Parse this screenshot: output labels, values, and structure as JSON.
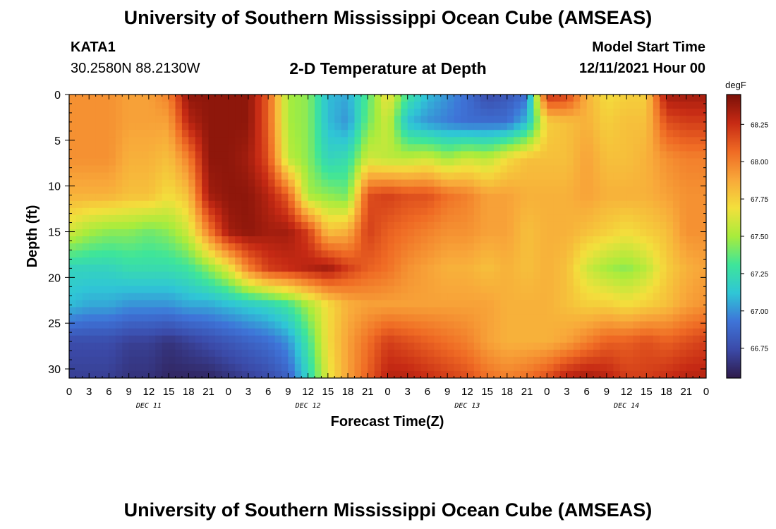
{
  "header": {
    "title": "University of Southern Mississippi Ocean Cube (AMSEAS)",
    "station": "KATA1",
    "coords": "30.2580N  88.2130W",
    "subtitle": "2-D Temperature at Depth",
    "model_start_label": "Model Start Time",
    "model_start_value": "12/11/2021 Hour 00"
  },
  "footer": {
    "title": "University of Southern Mississippi Ocean Cube (AMSEAS)"
  },
  "chart_data": {
    "type": "heatmap",
    "title": "2-D Temperature at Depth",
    "xlabel": "Forecast Time(Z)",
    "ylabel": "Depth (ft)",
    "xlim": [
      0,
      96
    ],
    "ylim": [
      31,
      0
    ],
    "x_tick_labels": [
      "0",
      "3",
      "6",
      "9",
      "12",
      "15",
      "18",
      "21",
      "0",
      "3",
      "6",
      "9",
      "12",
      "15",
      "18",
      "21",
      "0",
      "3",
      "6",
      "9",
      "12",
      "15",
      "18",
      "21",
      "0",
      "3",
      "6",
      "9",
      "12",
      "15",
      "18",
      "21",
      "0"
    ],
    "y_ticks": [
      0,
      5,
      10,
      15,
      20,
      25,
      30
    ],
    "day_labels": [
      {
        "label": "DEC 11",
        "hour": 12
      },
      {
        "label": "DEC 12",
        "hour": 36
      },
      {
        "label": "DEC 13",
        "hour": 60
      },
      {
        "label": "DEC 14",
        "hour": 84
      }
    ],
    "colorbar": {
      "units": "degF",
      "ticks": [
        66.75,
        67.0,
        67.25,
        67.5,
        67.75,
        68.0,
        68.25
      ],
      "tick_labels": [
        "66.75",
        "67.00",
        "67.25",
        "67.50",
        "67.75",
        "68.00",
        "68.25"
      ],
      "range": [
        66.55,
        68.45
      ],
      "colors": [
        "#2e1a4a",
        "#3b4aa8",
        "#3e74d8",
        "#2fc6d6",
        "#3ee59a",
        "#a8ec3c",
        "#f3e03c",
        "#f8a83a",
        "#ef6a24",
        "#c62a14",
        "#7a1008"
      ]
    },
    "depths": [
      0,
      5,
      10,
      15,
      20,
      25,
      30
    ],
    "hours": [
      0,
      3,
      6,
      9,
      12,
      15,
      18,
      21,
      24,
      27,
      30,
      33,
      36,
      39,
      42,
      45,
      48,
      51,
      54,
      57,
      60,
      63,
      66,
      69,
      72,
      75,
      78,
      81,
      84,
      87,
      90,
      93,
      96
    ],
    "values": [
      [
        67.95,
        67.95,
        67.95,
        67.9,
        67.9,
        68.0,
        68.4,
        68.4,
        68.4,
        68.4,
        68.1,
        67.5,
        67.45,
        67.1,
        67.05,
        67.35,
        67.7,
        67.3,
        67.1,
        67.0,
        66.9,
        66.75,
        66.8,
        66.9,
        68.25,
        68.2,
        67.85,
        67.7,
        67.75,
        67.75,
        68.35,
        68.35,
        68.35
      ],
      [
        67.95,
        67.95,
        67.95,
        67.9,
        67.9,
        67.9,
        68.3,
        68.4,
        68.4,
        68.4,
        68.1,
        67.5,
        67.45,
        67.1,
        67.0,
        67.4,
        67.6,
        67.1,
        67.0,
        66.95,
        66.9,
        66.9,
        66.9,
        67.1,
        67.75,
        67.8,
        67.85,
        67.75,
        67.8,
        67.8,
        68.15,
        68.2,
        68.2
      ],
      [
        67.95,
        67.95,
        67.95,
        67.85,
        67.85,
        67.8,
        68.0,
        68.4,
        68.4,
        68.35,
        68.15,
        67.55,
        67.45,
        67.2,
        67.25,
        67.6,
        67.55,
        67.55,
        67.6,
        67.5,
        67.6,
        67.55,
        67.7,
        67.8,
        67.8,
        67.8,
        67.9,
        67.8,
        67.8,
        67.85,
        67.95,
        68.0,
        68.0
      ],
      [
        67.85,
        67.85,
        67.85,
        67.8,
        67.8,
        67.7,
        67.8,
        68.35,
        68.4,
        68.4,
        68.3,
        68.1,
        67.5,
        67.45,
        67.4,
        68.15,
        68.2,
        68.15,
        68.15,
        68.05,
        68.0,
        67.9,
        67.9,
        67.85,
        67.85,
        67.85,
        67.9,
        67.85,
        67.85,
        67.85,
        67.9,
        67.95,
        67.95
      ],
      [
        67.6,
        67.5,
        67.45,
        67.45,
        67.4,
        67.45,
        67.6,
        68.0,
        68.35,
        68.4,
        68.35,
        68.35,
        68.2,
        67.8,
        67.85,
        68.2,
        68.1,
        68.05,
        68.0,
        67.95,
        67.95,
        67.9,
        67.9,
        67.8,
        67.85,
        67.85,
        67.8,
        67.75,
        67.7,
        67.75,
        67.8,
        67.95,
        67.95
      ],
      [
        67.2,
        67.2,
        67.2,
        67.25,
        67.25,
        67.25,
        67.3,
        67.45,
        67.65,
        68.0,
        68.2,
        68.25,
        68.3,
        68.35,
        68.2,
        68.1,
        68.05,
        67.95,
        67.9,
        67.85,
        67.85,
        67.8,
        67.85,
        67.8,
        67.85,
        67.8,
        67.6,
        67.5,
        67.45,
        67.55,
        67.75,
        67.85,
        67.9
      ],
      [
        67.1,
        67.05,
        67.05,
        67.0,
        67.0,
        67.0,
        67.05,
        67.05,
        67.1,
        67.15,
        67.2,
        67.3,
        67.5,
        67.7,
        67.85,
        67.9,
        67.9,
        67.9,
        67.9,
        67.9,
        67.9,
        67.9,
        67.85,
        67.85,
        67.85,
        67.8,
        67.75,
        67.75,
        67.7,
        67.75,
        67.8,
        67.9,
        67.95
      ],
      [
        66.75,
        66.75,
        66.75,
        66.7,
        66.7,
        66.65,
        66.7,
        66.75,
        66.8,
        66.85,
        66.9,
        67.0,
        67.3,
        67.7,
        67.9,
        68.05,
        68.2,
        68.15,
        68.1,
        68.05,
        68.0,
        67.9,
        67.85,
        67.85,
        67.85,
        67.9,
        68.0,
        68.1,
        68.1,
        68.15,
        68.1,
        68.15,
        68.2
      ],
      [
        66.7,
        66.7,
        66.7,
        66.65,
        66.65,
        66.6,
        66.6,
        66.6,
        66.65,
        66.7,
        66.75,
        66.85,
        67.2,
        67.65,
        67.9,
        68.1,
        68.3,
        68.3,
        68.25,
        68.2,
        68.15,
        68.05,
        68.0,
        68.05,
        68.15,
        68.3,
        68.35,
        68.3,
        68.2,
        68.2,
        68.25,
        68.3,
        68.3
      ]
    ],
    "value_depths": [
      0,
      3,
      7,
      11,
      15,
      19,
      23,
      27,
      31
    ]
  }
}
